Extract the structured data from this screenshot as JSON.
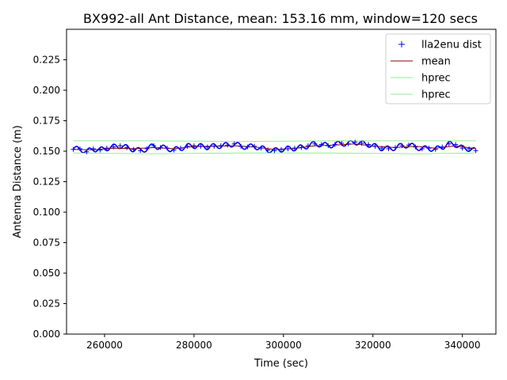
{
  "chart_data": {
    "type": "scatter",
    "title": "BX992-all Ant Distance, mean: 153.16 mm, window=120 secs",
    "xlabel": "Time (sec)",
    "ylabel": "Antenna Distance (m)",
    "xlim": [
      251500,
      347500
    ],
    "ylim": [
      0.0,
      0.25
    ],
    "xticks": [
      260000,
      280000,
      300000,
      320000,
      340000
    ],
    "xtick_labels": [
      "260000",
      "280000",
      "300000",
      "320000",
      "340000"
    ],
    "yticks": [
      0.0,
      0.025,
      0.05,
      0.075,
      0.1,
      0.125,
      0.15,
      0.175,
      0.2,
      0.225
    ],
    "ytick_labels": [
      "0.000",
      "0.025",
      "0.050",
      "0.075",
      "0.100",
      "0.125",
      "0.150",
      "0.175",
      "0.200",
      "0.225"
    ],
    "grid": false,
    "legend_position": "top-right",
    "legend": [
      {
        "label": "lla2enu dist",
        "marker": "+",
        "color": "#0000ff"
      },
      {
        "label": "mean",
        "marker": "line",
        "color": "#8b0000"
      },
      {
        "label": "hprec",
        "marker": "line",
        "color": "#90ee90"
      },
      {
        "label": "hprec",
        "marker": "line",
        "color": "#90ee90"
      }
    ],
    "series": [
      {
        "name": "lla2enu dist",
        "style": "points",
        "color": "#0000ff",
        "x": [
          253000,
          254500,
          256000,
          257500,
          259000,
          260500,
          262000,
          263500,
          265000,
          266500,
          268000,
          269500,
          271000,
          272500,
          274000,
          275500,
          277000,
          278500,
          280000,
          281500,
          283000,
          284500,
          286000,
          287500,
          289000,
          290500,
          292000,
          293500,
          295000,
          296500,
          298000,
          299500,
          301000,
          302500,
          304000,
          305500,
          307000,
          308500,
          310000,
          311500,
          313000,
          314500,
          316000,
          317500,
          319000,
          320500,
          322000,
          323500,
          325000,
          326500,
          328000,
          329500,
          331000,
          332500,
          334000,
          335500,
          337000,
          338500,
          340000,
          341500,
          343000
        ],
        "y": [
          0.1515,
          0.152,
          0.1495,
          0.152,
          0.151,
          0.1525,
          0.1535,
          0.1545,
          0.153,
          0.1515,
          0.1505,
          0.152,
          0.1545,
          0.153,
          0.1525,
          0.151,
          0.1525,
          0.154,
          0.1545,
          0.154,
          0.1535,
          0.154,
          0.1545,
          0.155,
          0.156,
          0.154,
          0.1535,
          0.154,
          0.1525,
          0.151,
          0.1505,
          0.1515,
          0.152,
          0.1525,
          0.153,
          0.1545,
          0.156,
          0.1555,
          0.1545,
          0.1555,
          0.1565,
          0.156,
          0.1575,
          0.1565,
          0.1555,
          0.154,
          0.1525,
          0.152,
          0.153,
          0.1545,
          0.155,
          0.1535,
          0.152,
          0.1525,
          0.1515,
          0.1535,
          0.156,
          0.1555,
          0.1525,
          0.152,
          0.1505
        ]
      },
      {
        "name": "mean",
        "style": "line",
        "color": "#8b0000",
        "x": [
          253000,
          257500,
          262000,
          266500,
          271000,
          275500,
          280000,
          284500,
          289000,
          293500,
          298000,
          302500,
          307000,
          311500,
          316000,
          320500,
          325000,
          329500,
          334000,
          338500,
          343000
        ],
        "y": [
          0.1515,
          0.1512,
          0.1525,
          0.152,
          0.153,
          0.152,
          0.1538,
          0.154,
          0.1545,
          0.1535,
          0.1515,
          0.1522,
          0.1545,
          0.155,
          0.156,
          0.154,
          0.153,
          0.154,
          0.1525,
          0.1545,
          0.152
        ]
      },
      {
        "name": "hprec",
        "style": "line",
        "color": "#90ee90",
        "x": [
          253000,
          270000,
          290000,
          310000,
          330000,
          343000
        ],
        "y": [
          0.1585,
          0.1585,
          0.158,
          0.1585,
          0.1585,
          0.1585
        ]
      },
      {
        "name": "hprec",
        "style": "line",
        "color": "#90ee90",
        "x": [
          253000,
          270000,
          290000,
          310000,
          330000,
          343000
        ],
        "y": [
          0.1485,
          0.148,
          0.1485,
          0.1485,
          0.148,
          0.1485
        ]
      }
    ]
  }
}
